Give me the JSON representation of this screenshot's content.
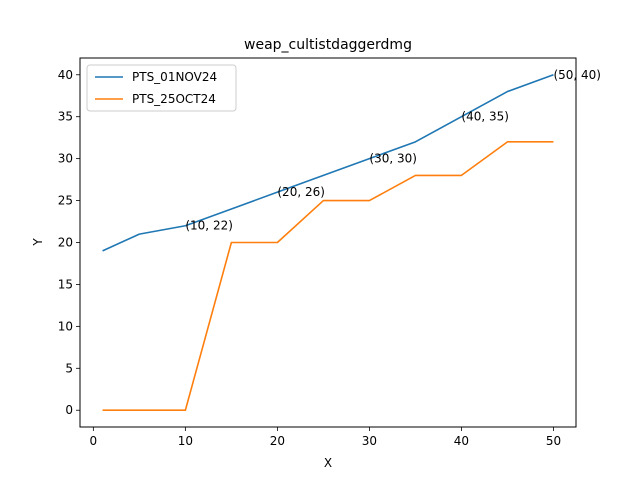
{
  "chart_data": {
    "type": "line",
    "title": "weap_cultistdaggerdmg",
    "xlabel": "X",
    "ylabel": "Y",
    "xlim": [
      -1.45,
      52.45
    ],
    "ylim": [
      -2,
      42
    ],
    "xticks": [
      0,
      10,
      20,
      30,
      40,
      50
    ],
    "yticks": [
      0,
      5,
      10,
      15,
      20,
      25,
      30,
      35,
      40
    ],
    "grid": false,
    "legend_position": "top-left",
    "series": [
      {
        "name": "PTS_01NOV24",
        "color": "#1f77b4",
        "x": [
          1,
          5,
          10,
          15,
          20,
          25,
          30,
          35,
          40,
          45,
          50
        ],
        "y": [
          19,
          21,
          22,
          24,
          26,
          28,
          30,
          32,
          35,
          38,
          40
        ]
      },
      {
        "name": "PTS_25OCT24",
        "color": "#ff7f0e",
        "x": [
          1,
          5,
          10,
          15,
          20,
          25,
          30,
          35,
          40,
          45,
          50
        ],
        "y": [
          0,
          0,
          0,
          20,
          20,
          25,
          25,
          28,
          28,
          32,
          32
        ]
      }
    ],
    "annotations": [
      {
        "x": 10,
        "y": 22,
        "text": "(10, 22)"
      },
      {
        "x": 20,
        "y": 26,
        "text": "(20, 26)"
      },
      {
        "x": 30,
        "y": 30,
        "text": "(30, 30)"
      },
      {
        "x": 40,
        "y": 35,
        "text": "(40, 35)"
      },
      {
        "x": 50,
        "y": 40,
        "text": "(50, 40)"
      }
    ]
  }
}
